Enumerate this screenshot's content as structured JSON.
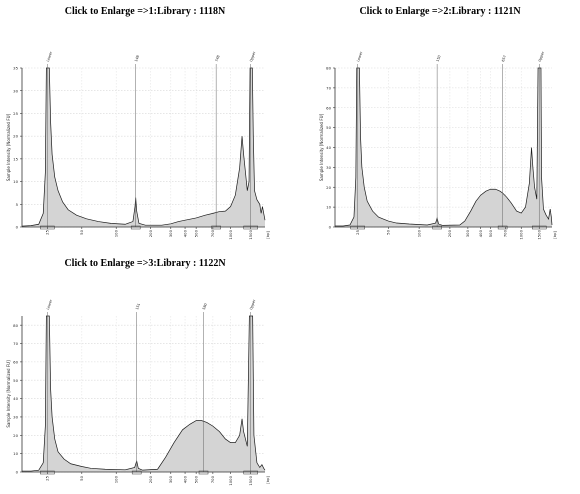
{
  "chart_data": [
    {
      "type": "area",
      "title": "Click to Enlarge =>1:Library : 1118N",
      "ylabel": "Sample Intensity [Normalized FU]",
      "xlabel": "[bp]",
      "x_scale": "log",
      "xlim": [
        15,
        2000
      ],
      "ylim": [
        0,
        35
      ],
      "yticks": [
        0,
        5,
        10,
        15,
        20,
        25,
        30,
        35
      ],
      "xticks": [
        25,
        50,
        100,
        200,
        300,
        400,
        500,
        700,
        1000,
        1500
      ],
      "marker_labels": [
        "Lower",
        "148",
        "748",
        "Upper"
      ],
      "marker_positions": [
        25,
        148,
        748,
        1500
      ],
      "series": [
        {
          "points": [
            [
              15,
              0.2
            ],
            [
              18,
              0.3
            ],
            [
              21,
              0.6
            ],
            [
              23,
              3
            ],
            [
              24,
              12
            ],
            [
              24.5,
              36
            ],
            [
              25,
              36
            ],
            [
              26,
              36
            ],
            [
              26.7,
              23
            ],
            [
              27.5,
              16
            ],
            [
              29,
              11
            ],
            [
              31,
              8
            ],
            [
              34,
              5.5
            ],
            [
              38,
              3.8
            ],
            [
              45,
              2.6
            ],
            [
              55,
              1.8
            ],
            [
              70,
              1.2
            ],
            [
              90,
              0.8
            ],
            [
              120,
              0.6
            ],
            [
              140,
              1.2
            ],
            [
              146,
              4.5
            ],
            [
              148,
              6.5
            ],
            [
              151,
              3.5
            ],
            [
              158,
              0.8
            ],
            [
              180,
              0.4
            ],
            [
              250,
              0.4
            ],
            [
              300,
              0.7
            ],
            [
              350,
              1.2
            ],
            [
              400,
              1.5
            ],
            [
              500,
              2
            ],
            [
              600,
              2.6
            ],
            [
              700,
              3
            ],
            [
              800,
              3.4
            ],
            [
              900,
              3.5
            ],
            [
              1000,
              4.5
            ],
            [
              1100,
              7
            ],
            [
              1200,
              13
            ],
            [
              1260,
              20
            ],
            [
              1300,
              16
            ],
            [
              1350,
              12
            ],
            [
              1400,
              8
            ],
            [
              1450,
              10
            ],
            [
              1480,
              36
            ],
            [
              1550,
              36
            ],
            [
              1580,
              20
            ],
            [
              1620,
              8
            ],
            [
              1700,
              6
            ],
            [
              1800,
              5
            ],
            [
              1850,
              3
            ],
            [
              1900,
              4.5
            ],
            [
              2000,
              1.5
            ]
          ]
        }
      ]
    },
    {
      "type": "area",
      "title": "Click to Enlarge =>2:Library : 1121N",
      "ylabel": "Sample Intensity [Normalized FU]",
      "xlabel": "[bp]",
      "x_scale": "log",
      "xlim": [
        15,
        2000
      ],
      "ylim": [
        0,
        80
      ],
      "yticks": [
        0,
        10,
        20,
        30,
        40,
        50,
        60,
        70,
        80
      ],
      "xticks": [
        25,
        50,
        100,
        200,
        300,
        400,
        500,
        700,
        1000,
        1500
      ],
      "marker_labels": [
        "Lower",
        "150",
        "657",
        "Upper"
      ],
      "marker_positions": [
        25,
        150,
        657,
        1500
      ],
      "series": [
        {
          "points": [
            [
              15,
              0.5
            ],
            [
              18,
              0.5
            ],
            [
              21,
              1
            ],
            [
              23,
              5
            ],
            [
              24,
              25
            ],
            [
              24.5,
              82
            ],
            [
              25,
              82
            ],
            [
              26,
              82
            ],
            [
              26.7,
              45
            ],
            [
              27.5,
              30
            ],
            [
              29,
              20
            ],
            [
              31,
              13
            ],
            [
              35,
              8
            ],
            [
              40,
              5
            ],
            [
              50,
              3
            ],
            [
              60,
              2
            ],
            [
              80,
              1.5
            ],
            [
              120,
              1
            ],
            [
              145,
              2
            ],
            [
              150,
              4.5
            ],
            [
              155,
              1.5
            ],
            [
              170,
              0.8
            ],
            [
              250,
              1
            ],
            [
              280,
              3
            ],
            [
              320,
              8
            ],
            [
              360,
              13
            ],
            [
              400,
              16
            ],
            [
              450,
              18
            ],
            [
              500,
              19
            ],
            [
              560,
              19
            ],
            [
              620,
              18
            ],
            [
              660,
              17
            ],
            [
              720,
              15
            ],
            [
              800,
              12
            ],
            [
              900,
              8
            ],
            [
              1000,
              7
            ],
            [
              1100,
              10
            ],
            [
              1200,
              22
            ],
            [
              1260,
              40
            ],
            [
              1300,
              30
            ],
            [
              1350,
              20
            ],
            [
              1420,
              14
            ],
            [
              1460,
              82
            ],
            [
              1560,
              82
            ],
            [
              1580,
              25
            ],
            [
              1650,
              9
            ],
            [
              1750,
              6
            ],
            [
              1850,
              4
            ],
            [
              1920,
              9
            ],
            [
              1970,
              5
            ],
            [
              2000,
              1
            ]
          ]
        }
      ]
    },
    {
      "type": "area",
      "title": "Click to Enlarge =>3:Library : 1122N",
      "ylabel": "Sample Intensity [Normalized FU]",
      "xlabel": "[bp]",
      "x_scale": "log",
      "xlim": [
        15,
        2000
      ],
      "ylim": [
        0,
        85
      ],
      "yticks": [
        0,
        10,
        20,
        30,
        40,
        50,
        60,
        70,
        80
      ],
      "xticks": [
        25,
        50,
        100,
        200,
        300,
        400,
        500,
        700,
        1000,
        1500
      ],
      "marker_labels": [
        "Lower",
        "151",
        "580",
        "Upper"
      ],
      "marker_positions": [
        25,
        151,
        580,
        1500
      ],
      "series": [
        {
          "points": [
            [
              15,
              0.5
            ],
            [
              18,
              0.5
            ],
            [
              21,
              1
            ],
            [
              23,
              5
            ],
            [
              24,
              25
            ],
            [
              24.5,
              87
            ],
            [
              25,
              87
            ],
            [
              26,
              87
            ],
            [
              26.7,
              45
            ],
            [
              27.5,
              30
            ],
            [
              29,
              18
            ],
            [
              31,
              11
            ],
            [
              35,
              7
            ],
            [
              40,
              4.5
            ],
            [
              50,
              3
            ],
            [
              60,
              2
            ],
            [
              80,
              1.5
            ],
            [
              120,
              1.2
            ],
            [
              145,
              2.5
            ],
            [
              151,
              6
            ],
            [
              156,
              2
            ],
            [
              170,
              1
            ],
            [
              230,
              1.5
            ],
            [
              270,
              8
            ],
            [
              320,
              16
            ],
            [
              380,
              23
            ],
            [
              440,
              26
            ],
            [
              500,
              28
            ],
            [
              560,
              28
            ],
            [
              620,
              27
            ],
            [
              700,
              25
            ],
            [
              800,
              22
            ],
            [
              900,
              18
            ],
            [
              1000,
              16
            ],
            [
              1100,
              16
            ],
            [
              1200,
              20
            ],
            [
              1260,
              29
            ],
            [
              1300,
              22
            ],
            [
              1400,
              14
            ],
            [
              1460,
              87
            ],
            [
              1560,
              87
            ],
            [
              1600,
              20
            ],
            [
              1700,
              5
            ],
            [
              1800,
              2.5
            ],
            [
              1880,
              4
            ],
            [
              1950,
              2
            ],
            [
              2000,
              1
            ]
          ]
        }
      ]
    }
  ]
}
